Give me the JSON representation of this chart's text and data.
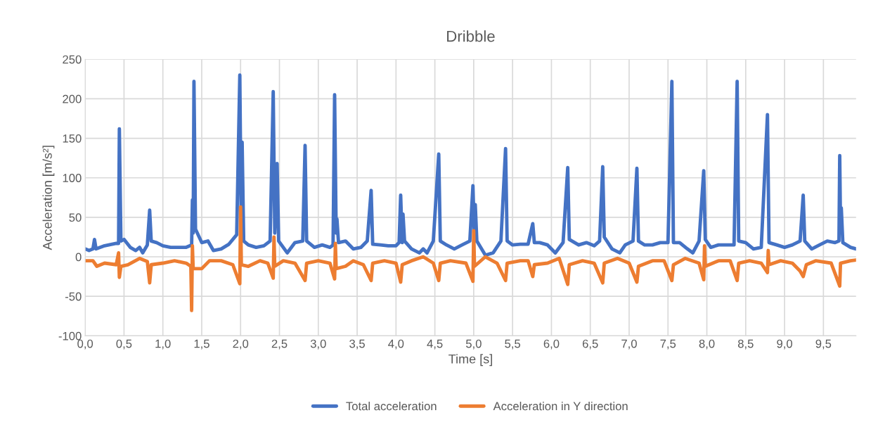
{
  "chart_data": {
    "type": "line",
    "title": "Dribble",
    "xlabel": "Time [s]",
    "ylabel": "Acceleration [m/s²]",
    "xlim": [
      0,
      9.92
    ],
    "ylim": [
      -100,
      250
    ],
    "xticks": [
      {
        "value": 0,
        "label": "0,0"
      },
      {
        "value": 0.5,
        "label": "0,5"
      },
      {
        "value": 1,
        "label": "1,0"
      },
      {
        "value": 1.5,
        "label": "1,5"
      },
      {
        "value": 2,
        "label": "2,0"
      },
      {
        "value": 2.5,
        "label": "2,5"
      },
      {
        "value": 3,
        "label": "3,0"
      },
      {
        "value": 3.5,
        "label": "3,5"
      },
      {
        "value": 4,
        "label": "4,0"
      },
      {
        "value": 4.5,
        "label": "4,5"
      },
      {
        "value": 5,
        "label": "5,0"
      },
      {
        "value": 5.5,
        "label": "5,5"
      },
      {
        "value": 6,
        "label": "6,0"
      },
      {
        "value": 6.5,
        "label": "6,5"
      },
      {
        "value": 7,
        "label": "7,0"
      },
      {
        "value": 7.5,
        "label": "7,5"
      },
      {
        "value": 8,
        "label": "8,0"
      },
      {
        "value": 8.5,
        "label": "8,5"
      },
      {
        "value": 9,
        "label": "9,0"
      },
      {
        "value": 9.5,
        "label": "9,5"
      }
    ],
    "yticks": [
      -100,
      -50,
      0,
      50,
      100,
      150,
      200,
      250
    ],
    "grid": true,
    "legend": "bottom",
    "marker": "none",
    "line_style": "solid",
    "series": [
      {
        "name": "Total acceleration",
        "color": "#4472c4",
        "x": [
          0,
          0.05,
          0.1,
          0.12,
          0.14,
          0.25,
          0.4,
          0.43,
          0.44,
          0.46,
          0.5,
          0.58,
          0.65,
          0.7,
          0.74,
          0.8,
          0.83,
          0.85,
          0.92,
          1.0,
          1.1,
          1.2,
          1.3,
          1.37,
          1.38,
          1.39,
          1.4,
          1.42,
          1.5,
          1.58,
          1.65,
          1.75,
          1.85,
          1.95,
          1.99,
          2.01,
          2.02,
          2.04,
          2.1,
          2.2,
          2.3,
          2.38,
          2.42,
          2.44,
          2.47,
          2.49,
          2.6,
          2.7,
          2.8,
          2.83,
          2.85,
          2.95,
          3.05,
          3.15,
          3.19,
          3.21,
          3.23,
          3.24,
          3.26,
          3.35,
          3.45,
          3.55,
          3.63,
          3.68,
          3.7,
          3.8,
          3.9,
          4.0,
          4.04,
          4.06,
          4.08,
          4.09,
          4.11,
          4.2,
          4.3,
          4.35,
          4.4,
          4.48,
          4.55,
          4.57,
          4.65,
          4.75,
          4.85,
          4.95,
          4.99,
          5.01,
          5.02,
          5.04,
          5.15,
          5.25,
          5.35,
          5.41,
          5.43,
          5.5,
          5.6,
          5.7,
          5.76,
          5.78,
          5.85,
          5.95,
          6.05,
          6.15,
          6.21,
          6.23,
          6.35,
          6.45,
          6.55,
          6.62,
          6.66,
          6.68,
          6.78,
          6.88,
          6.95,
          7.05,
          7.1,
          7.12,
          7.2,
          7.3,
          7.4,
          7.5,
          7.55,
          7.57,
          7.65,
          7.75,
          7.82,
          7.9,
          7.96,
          7.98,
          8.05,
          8.15,
          8.25,
          8.35,
          8.39,
          8.41,
          8.5,
          8.6,
          8.7,
          8.78,
          8.8,
          8.9,
          9.0,
          9.1,
          9.2,
          9.24,
          9.26,
          9.35,
          9.45,
          9.55,
          9.65,
          9.7,
          9.71,
          9.72,
          9.73,
          9.75,
          9.85,
          9.92
        ],
        "values": [
          10,
          8,
          10,
          22,
          10,
          14,
          17,
          17,
          162,
          20,
          22,
          12,
          8,
          12,
          5,
          15,
          59,
          20,
          18,
          14,
          12,
          12,
          12,
          15,
          72,
          30,
          222,
          35,
          18,
          20,
          8,
          10,
          16,
          28,
          230,
          20,
          145,
          20,
          15,
          12,
          14,
          20,
          209,
          30,
          118,
          20,
          5,
          18,
          20,
          141,
          20,
          12,
          15,
          12,
          15,
          205,
          30,
          48,
          18,
          20,
          10,
          12,
          20,
          84,
          16,
          15,
          14,
          14,
          18,
          78,
          18,
          54,
          20,
          10,
          5,
          10,
          5,
          20,
          130,
          20,
          15,
          10,
          15,
          20,
          90,
          20,
          66,
          20,
          2,
          5,
          20,
          137,
          20,
          15,
          16,
          16,
          42,
          18,
          18,
          15,
          5,
          18,
          113,
          22,
          15,
          18,
          14,
          20,
          114,
          25,
          10,
          5,
          15,
          20,
          112,
          20,
          15,
          15,
          18,
          18,
          222,
          18,
          18,
          10,
          5,
          20,
          109,
          22,
          12,
          15,
          15,
          15,
          222,
          20,
          18,
          10,
          12,
          180,
          18,
          15,
          12,
          15,
          20,
          78,
          20,
          10,
          15,
          20,
          18,
          20,
          128,
          40,
          62,
          18,
          12,
          10
        ]
      },
      {
        "name": "Acceleration in Y direction",
        "color": "#ed7d31",
        "x": [
          0,
          0.1,
          0.15,
          0.25,
          0.4,
          0.43,
          0.44,
          0.46,
          0.55,
          0.7,
          0.8,
          0.83,
          0.85,
          1.0,
          1.15,
          1.3,
          1.36,
          1.37,
          1.38,
          1.39,
          1.5,
          1.6,
          1.75,
          1.9,
          1.99,
          2.0,
          2.01,
          2.1,
          2.25,
          2.35,
          2.42,
          2.43,
          2.44,
          2.55,
          2.7,
          2.83,
          2.85,
          3.0,
          3.15,
          3.21,
          3.22,
          3.23,
          3.35,
          3.45,
          3.58,
          3.68,
          3.7,
          3.85,
          4.0,
          4.06,
          4.08,
          4.2,
          4.35,
          4.48,
          4.55,
          4.57,
          4.7,
          4.9,
          4.99,
          5.0,
          5.01,
          5.15,
          5.3,
          5.41,
          5.43,
          5.6,
          5.7,
          5.76,
          5.78,
          5.95,
          6.1,
          6.21,
          6.23,
          6.4,
          6.55,
          6.66,
          6.68,
          6.85,
          7.0,
          7.1,
          7.12,
          7.3,
          7.45,
          7.55,
          7.57,
          7.72,
          7.9,
          7.96,
          7.97,
          7.98,
          8.15,
          8.3,
          8.39,
          8.41,
          8.55,
          8.7,
          8.78,
          8.79,
          8.8,
          8.95,
          9.1,
          9.2,
          9.24,
          9.28,
          9.4,
          9.6,
          9.71,
          9.72,
          9.85,
          9.92
        ],
        "values": [
          -5,
          -5,
          -12,
          -8,
          -10,
          5,
          -26,
          -12,
          -10,
          -2,
          -6,
          -33,
          -10,
          -8,
          -5,
          -8,
          -12,
          -68,
          14,
          -15,
          -15,
          -5,
          -5,
          -10,
          -34,
          63,
          -10,
          -12,
          -5,
          -8,
          -27,
          25,
          -12,
          -5,
          -8,
          -30,
          -8,
          -5,
          -8,
          -28,
          17,
          -15,
          -12,
          -5,
          -10,
          -30,
          -8,
          -5,
          -8,
          -32,
          -10,
          -5,
          0,
          -8,
          -30,
          -8,
          -5,
          -8,
          -31,
          33,
          -12,
          0,
          -8,
          -30,
          -8,
          -5,
          -5,
          -25,
          -10,
          -8,
          -2,
          -35,
          -10,
          -5,
          -8,
          -33,
          -8,
          -2,
          -8,
          -32,
          -12,
          -5,
          -5,
          -30,
          -10,
          -2,
          -8,
          -29,
          14,
          -12,
          -5,
          -5,
          -30,
          -8,
          -5,
          -8,
          -20,
          8,
          -10,
          -5,
          -8,
          -18,
          -25,
          -10,
          -5,
          -8,
          -37,
          -8,
          -5,
          -4
        ]
      }
    ]
  }
}
